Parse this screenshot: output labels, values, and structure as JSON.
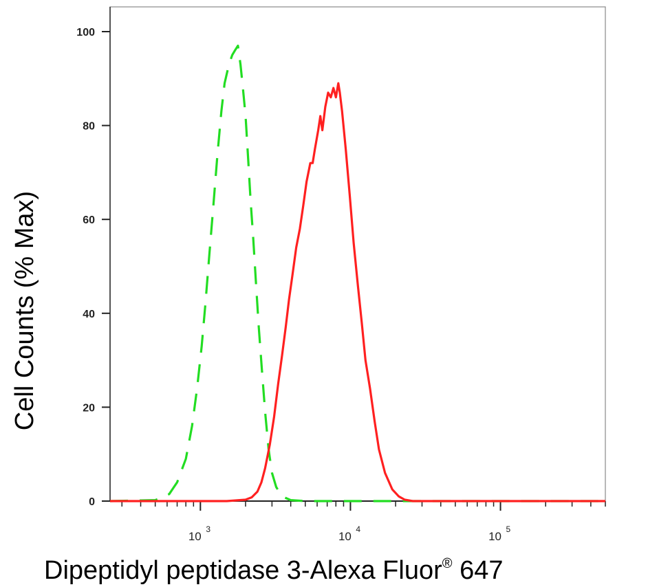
{
  "chart_data": {
    "type": "line",
    "title": "",
    "xlabel": "Dipeptidyl peptidase 3-Alexa Fluor",
    "xlabel_mark": "®",
    "xlabel_suffix": " 647",
    "ylabel": "Cell Counts (% Max)",
    "xscale": "log",
    "xlim": [
      250,
      500000
    ],
    "ylim": [
      0,
      100
    ],
    "yticks": [
      "0",
      "20",
      "40",
      "60",
      "80",
      "100"
    ],
    "xticks": [
      {
        "base": "10",
        "exp": "3",
        "value": 1000
      },
      {
        "base": "10",
        "exp": "4",
        "value": 10000
      },
      {
        "base": "10",
        "exp": "5",
        "value": 100000
      }
    ],
    "grid": false,
    "legend": "none",
    "series": [
      {
        "color": "#22dd22",
        "style": "dashed",
        "points": [
          [
            250,
            0
          ],
          [
            500,
            0.2
          ],
          [
            620,
            1.5
          ],
          [
            700,
            4
          ],
          [
            800,
            9
          ],
          [
            880,
            16
          ],
          [
            950,
            24
          ],
          [
            1020,
            33
          ],
          [
            1080,
            42
          ],
          [
            1150,
            53
          ],
          [
            1220,
            63
          ],
          [
            1300,
            74
          ],
          [
            1380,
            83
          ],
          [
            1450,
            89
          ],
          [
            1550,
            93
          ],
          [
            1630,
            95
          ],
          [
            1700,
            96
          ],
          [
            1780,
            97
          ],
          [
            1850,
            93
          ],
          [
            1920,
            88
          ],
          [
            2000,
            82
          ],
          [
            2080,
            73
          ],
          [
            2160,
            64
          ],
          [
            2250,
            56
          ],
          [
            2350,
            46
          ],
          [
            2450,
            37
          ],
          [
            2570,
            28
          ],
          [
            2700,
            19
          ],
          [
            2850,
            11
          ],
          [
            3000,
            6
          ],
          [
            3200,
            3
          ],
          [
            3500,
            1
          ],
          [
            4000,
            0.2
          ],
          [
            5000,
            0
          ],
          [
            500000,
            0
          ]
        ]
      },
      {
        "color": "#ff2020",
        "style": "solid",
        "points": [
          [
            250,
            0
          ],
          [
            1500,
            0
          ],
          [
            2000,
            0.3
          ],
          [
            2200,
            0.8
          ],
          [
            2400,
            2
          ],
          [
            2550,
            4
          ],
          [
            2700,
            7
          ],
          [
            2900,
            12
          ],
          [
            3100,
            18
          ],
          [
            3300,
            25
          ],
          [
            3500,
            31
          ],
          [
            3700,
            37
          ],
          [
            3900,
            43
          ],
          [
            4100,
            48
          ],
          [
            4350,
            54
          ],
          [
            4600,
            58
          ],
          [
            4850,
            63
          ],
          [
            5100,
            68
          ],
          [
            5400,
            72
          ],
          [
            5600,
            72
          ],
          [
            5800,
            75
          ],
          [
            6100,
            79
          ],
          [
            6300,
            82
          ],
          [
            6500,
            79
          ],
          [
            6800,
            84
          ],
          [
            7100,
            87
          ],
          [
            7400,
            86
          ],
          [
            7700,
            88
          ],
          [
            8000,
            86
          ],
          [
            8300,
            89
          ],
          [
            8500,
            87
          ],
          [
            8800,
            83
          ],
          [
            9300,
            75
          ],
          [
            9900,
            65
          ],
          [
            10500,
            55
          ],
          [
            11200,
            46
          ],
          [
            11900,
            38
          ],
          [
            12600,
            30
          ],
          [
            13500,
            24
          ],
          [
            14500,
            17
          ],
          [
            15500,
            11
          ],
          [
            17000,
            6
          ],
          [
            19000,
            2.5
          ],
          [
            21000,
            1
          ],
          [
            23000,
            0.3
          ],
          [
            26000,
            0
          ],
          [
            500000,
            0
          ]
        ]
      }
    ]
  }
}
